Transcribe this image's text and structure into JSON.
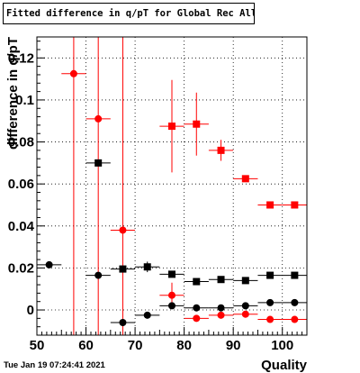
{
  "title": "Fitted difference in q/pT for Global Rec All NoHits",
  "timestamp": "Tue Jan 19 07:24:41 2021",
  "chart_data": {
    "type": "scatter",
    "title": "Fitted difference in q/pT for Global Rec All NoHits",
    "xlabel": "Quality",
    "ylabel": "difference in q/pT",
    "xlim": [
      50,
      105
    ],
    "ylim": [
      -0.012,
      0.13
    ],
    "x_ticks": [
      50,
      60,
      70,
      80,
      90,
      100
    ],
    "y_ticks": [
      0,
      0.02,
      0.04,
      0.06,
      0.08,
      0.1,
      0.12
    ],
    "x_tick_labels": [
      "50",
      "60",
      "70",
      "80",
      "90",
      "100"
    ],
    "y_tick_labels": [
      "0",
      "0.02",
      "0.04",
      "0.06",
      "0.08",
      "0.1",
      "0.12"
    ],
    "grid": true,
    "series": [
      {
        "marker": "square",
        "color": "#ff0000",
        "points": [
          {
            "x": 77.5,
            "y": 0.0875,
            "xerr": 2.5,
            "yerr_low": 0.022,
            "yerr_high": 0.022
          },
          {
            "x": 82.5,
            "y": 0.0885,
            "xerr": 2.5,
            "yerr_low": 0.015,
            "yerr_high": 0.015
          },
          {
            "x": 87.5,
            "y": 0.076,
            "xerr": 2.5,
            "yerr_low": 0.005,
            "yerr_high": 0.005
          },
          {
            "x": 92.5,
            "y": 0.0625,
            "xerr": 2.5,
            "yerr_low": 0.0015,
            "yerr_high": 0.0015
          },
          {
            "x": 97.5,
            "y": 0.05,
            "xerr": 2.5,
            "yerr_low": 0.001,
            "yerr_high": 0.001
          },
          {
            "x": 102.5,
            "y": 0.05,
            "xerr": 2.5,
            "yerr_low": 0.001,
            "yerr_high": 0.001
          }
        ]
      },
      {
        "marker": "circle",
        "color": "#ff0000",
        "points": [
          {
            "x": 57.5,
            "y": 0.1125,
            "xerr": 2.5,
            "yerr_low": 0.2,
            "yerr_high": 0.2
          },
          {
            "x": 62.5,
            "y": 0.091,
            "xerr": 2.5,
            "yerr_low": 0.2,
            "yerr_high": 0.2
          },
          {
            "x": 67.5,
            "y": 0.038,
            "xerr": 2.5,
            "yerr_low": 0.2,
            "yerr_high": 0.2
          },
          {
            "x": 77.5,
            "y": 0.007,
            "xerr": 2.5,
            "yerr_low": 0.006,
            "yerr_high": 0.006
          },
          {
            "x": 82.5,
            "y": -0.004,
            "xerr": 2.5,
            "yerr_low": 0.0015,
            "yerr_high": 0.0015
          },
          {
            "x": 87.5,
            "y": -0.0025,
            "xerr": 2.5,
            "yerr_low": 0.001,
            "yerr_high": 0.001
          },
          {
            "x": 92.5,
            "y": -0.002,
            "xerr": 2.5,
            "yerr_low": 0.0005,
            "yerr_high": 0.0005
          },
          {
            "x": 97.5,
            "y": -0.0045,
            "xerr": 2.5,
            "yerr_low": 0.0005,
            "yerr_high": 0.0005
          },
          {
            "x": 102.5,
            "y": -0.0045,
            "xerr": 2.5,
            "yerr_low": 0.0005,
            "yerr_high": 0.0005
          }
        ]
      },
      {
        "marker": "square",
        "color": "#000000",
        "points": [
          {
            "x": 62.5,
            "y": 0.07,
            "xerr": 2.5,
            "yerr_low": 0.0,
            "yerr_high": 0.0
          },
          {
            "x": 67.5,
            "y": 0.0195,
            "xerr": 2.5,
            "yerr_low": 0.0,
            "yerr_high": 0.0
          },
          {
            "x": 72.5,
            "y": 0.0205,
            "xerr": 2.5,
            "yerr_low": 0.0025,
            "yerr_high": 0.0025
          },
          {
            "x": 77.5,
            "y": 0.017,
            "xerr": 2.5,
            "yerr_low": 0.001,
            "yerr_high": 0.001
          },
          {
            "x": 82.5,
            "y": 0.0135,
            "xerr": 2.5,
            "yerr_low": 0.0005,
            "yerr_high": 0.0005
          },
          {
            "x": 87.5,
            "y": 0.0145,
            "xerr": 2.5,
            "yerr_low": 0.0005,
            "yerr_high": 0.0005
          },
          {
            "x": 92.5,
            "y": 0.014,
            "xerr": 2.5,
            "yerr_low": 0.0005,
            "yerr_high": 0.0005
          },
          {
            "x": 97.5,
            "y": 0.0165,
            "xerr": 2.5,
            "yerr_low": 0.0005,
            "yerr_high": 0.0005
          },
          {
            "x": 102.5,
            "y": 0.0165,
            "xerr": 2.5,
            "yerr_low": 0.0005,
            "yerr_high": 0.0005
          }
        ]
      },
      {
        "marker": "circle",
        "color": "#000000",
        "points": [
          {
            "x": 52.5,
            "y": 0.0215,
            "xerr": 2.5,
            "yerr_low": 0.0,
            "yerr_high": 0.0
          },
          {
            "x": 62.5,
            "y": 0.0165,
            "xerr": 2.5,
            "yerr_low": 0.0,
            "yerr_high": 0.0
          },
          {
            "x": 67.5,
            "y": -0.006,
            "xerr": 2.5,
            "yerr_low": 0.0,
            "yerr_high": 0.0
          },
          {
            "x": 72.5,
            "y": -0.0025,
            "xerr": 2.5,
            "yerr_low": 0.0015,
            "yerr_high": 0.0015
          },
          {
            "x": 77.5,
            "y": 0.002,
            "xerr": 2.5,
            "yerr_low": 0.0008,
            "yerr_high": 0.0008
          },
          {
            "x": 82.5,
            "y": 0.001,
            "xerr": 2.5,
            "yerr_low": 0.0004,
            "yerr_high": 0.0004
          },
          {
            "x": 87.5,
            "y": 0.001,
            "xerr": 2.5,
            "yerr_low": 0.0004,
            "yerr_high": 0.0004
          },
          {
            "x": 92.5,
            "y": 0.002,
            "xerr": 2.5,
            "yerr_low": 0.0003,
            "yerr_high": 0.0003
          },
          {
            "x": 97.5,
            "y": 0.0035,
            "xerr": 2.5,
            "yerr_low": 0.0003,
            "yerr_high": 0.0003
          },
          {
            "x": 102.5,
            "y": 0.0035,
            "xerr": 2.5,
            "yerr_low": 0.0003,
            "yerr_high": 0.0003
          }
        ]
      }
    ]
  }
}
